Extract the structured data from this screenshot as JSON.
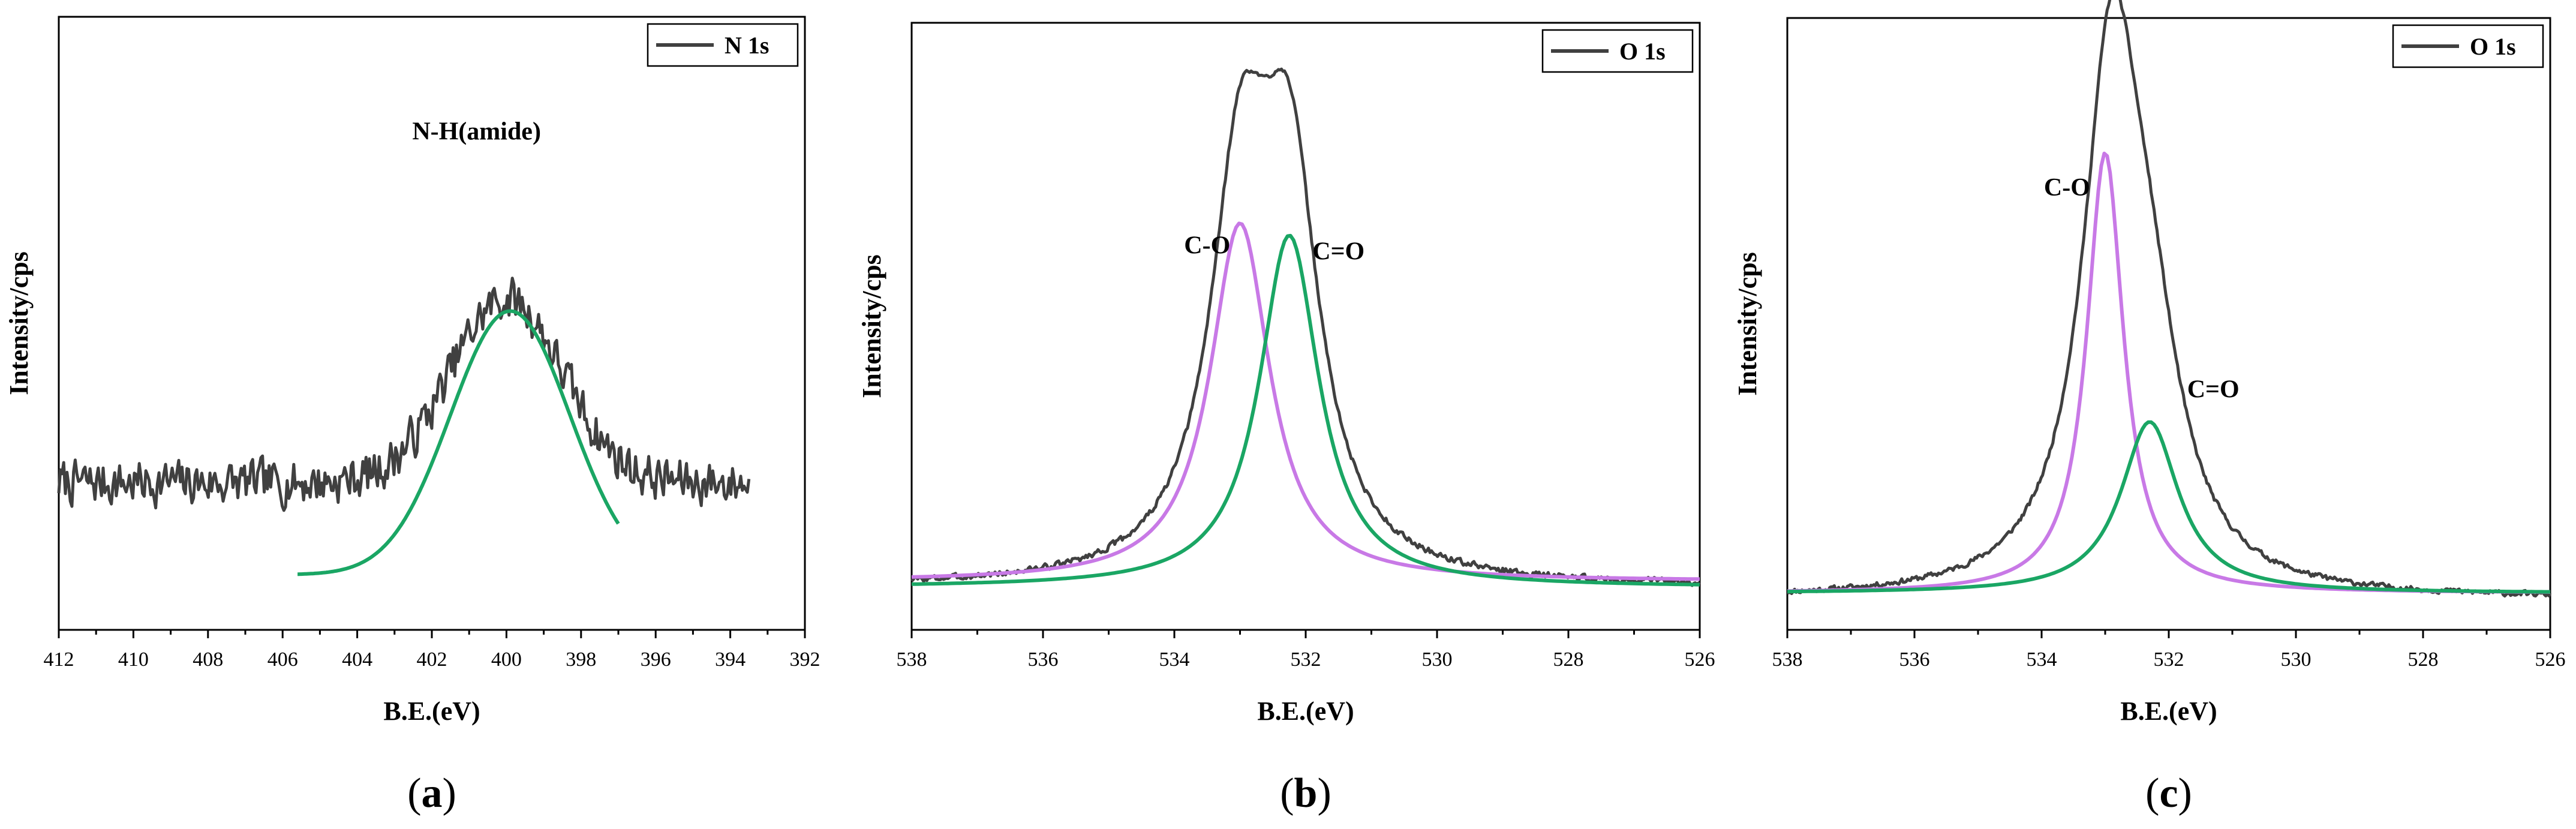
{
  "chart_data": [
    {
      "id": "a",
      "type": "line",
      "panel_label": "a",
      "xlabel": "B.E.(eV)",
      "ylabel": "Intensity/cps",
      "xlim": [
        412,
        392
      ],
      "ylim": [
        0,
        100
      ],
      "x_ticks": [
        412,
        410,
        408,
        406,
        404,
        402,
        400,
        398,
        396,
        394,
        392
      ],
      "legend": {
        "entry": "N 1s",
        "color": "#404040",
        "position": "top-right"
      },
      "annotations": [
        {
          "text": "N-H(amide)",
          "x": 400.8,
          "y": 80
        }
      ],
      "series": [
        {
          "name": "N 1s",
          "kind": "raw",
          "color": "#404040",
          "x_range": [
            412,
            393.5
          ],
          "baseline": 24,
          "peaks": [
            {
              "center": 400.0,
              "height": 30,
              "width": 1.5
            }
          ],
          "noise": 5,
          "seed": 7
        },
        {
          "name": "N-H(amide)",
          "kind": "fit",
          "color": "#1aa664",
          "x_range": [
            405.6,
            397.0
          ],
          "baseline": 9,
          "peaks": [
            {
              "center": 399.9,
              "height": 43,
              "width": 1.6
            }
          ]
        }
      ]
    },
    {
      "id": "b",
      "type": "line",
      "panel_label": "b",
      "xlabel": "B.E.(eV)",
      "ylabel": "Intensity/cps",
      "xlim": [
        538,
        526
      ],
      "ylim": [
        0,
        100
      ],
      "x_ticks": [
        538,
        536,
        534,
        532,
        530,
        528,
        526
      ],
      "legend": {
        "entry": "O 1s",
        "color": "#404040",
        "position": "top-right"
      },
      "annotations": [
        {
          "text": "C-O",
          "x": 533.5,
          "y": 62
        },
        {
          "text": "C=O",
          "x": 531.5,
          "y": 61
        }
      ],
      "series": [
        {
          "name": "O 1s",
          "kind": "raw",
          "color": "#404040",
          "x_range": [
            538,
            526
          ],
          "baseline": 7,
          "peaks": [
            {
              "center": 533.0,
              "height": 61,
              "width": 0.55
            },
            {
              "center": 532.25,
              "height": 62,
              "width": 0.55
            }
          ],
          "noise": 0.7,
          "seed": 3
        },
        {
          "name": "C-O",
          "kind": "fit",
          "color": "#c879e6",
          "x_range": [
            538,
            526
          ],
          "baseline": 8,
          "peaks": [
            {
              "center": 533.0,
              "height": 59,
              "width": 0.55
            }
          ]
        },
        {
          "name": "C=O",
          "kind": "fit",
          "color": "#1aa664",
          "x_range": [
            538,
            526
          ],
          "baseline": 7,
          "peaks": [
            {
              "center": 532.25,
              "height": 58,
              "width": 0.55
            }
          ]
        }
      ]
    },
    {
      "id": "c",
      "type": "line",
      "panel_label": "c",
      "xlabel": "B.E.(eV)",
      "ylabel": "Intensity/cps",
      "xlim": [
        538,
        526
      ],
      "ylim": [
        0,
        100
      ],
      "x_ticks": [
        538,
        536,
        534,
        532,
        530,
        528,
        526
      ],
      "legend": {
        "entry": "O 1s",
        "color": "#404040",
        "position": "top-right"
      },
      "annotations": [
        {
          "text": "C-O",
          "x": 533.6,
          "y": 71
        },
        {
          "text": "C=O",
          "x": 531.3,
          "y": 38
        }
      ],
      "series": [
        {
          "name": "O 1s",
          "kind": "raw",
          "color": "#404040",
          "x_range": [
            538,
            526
          ],
          "baseline": 5,
          "peaks": [
            {
              "center": 532.9,
              "height": 84,
              "width": 0.55
            },
            {
              "center": 532.3,
              "height": 30,
              "width": 0.6
            }
          ],
          "noise": 0.6,
          "seed": 11
        },
        {
          "name": "C-O",
          "kind": "fit",
          "color": "#c879e6",
          "x_range": [
            538,
            526
          ],
          "baseline": 6,
          "peaks": [
            {
              "center": 533.0,
              "height": 72,
              "width": 0.35
            }
          ]
        },
        {
          "name": "C=O",
          "kind": "fit",
          "color": "#1aa664",
          "x_range": [
            538,
            526
          ],
          "baseline": 6,
          "peaks": [
            {
              "center": 532.3,
              "height": 28,
              "width": 0.55
            }
          ]
        }
      ]
    }
  ]
}
